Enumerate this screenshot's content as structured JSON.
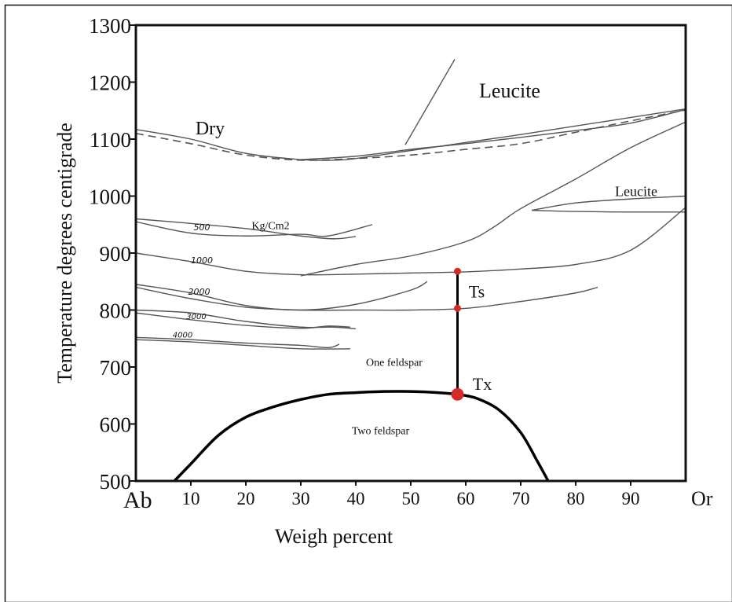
{
  "chart_data": {
    "type": "line",
    "xlabel": "Weigh percent",
    "ylabel": "Temperature degrees centigrade",
    "xlim": [
      0,
      100
    ],
    "ylim": [
      500,
      1300
    ],
    "x_ticks": [
      10,
      20,
      30,
      40,
      50,
      60,
      70,
      80,
      90
    ],
    "x_end_labels": {
      "left": "Ab",
      "right": "Or"
    },
    "y_ticks": [
      500,
      600,
      700,
      800,
      900,
      1000,
      1100,
      1200,
      1300
    ],
    "grid": false,
    "colors": {
      "axis": "#111111",
      "curve": "#555555",
      "solvus": "#000000",
      "marker": "#d62a2a"
    },
    "series": [
      {
        "name": "Dry",
        "style": "solid",
        "x": [
          0,
          10,
          20,
          30,
          36,
          40,
          50,
          60,
          70,
          80,
          90,
          100
        ],
        "y": [
          1117,
          1100,
          1075,
          1064,
          1063,
          1066,
          1080,
          1094,
          1108,
          1123,
          1138,
          1153
        ]
      },
      {
        "style": "dashed",
        "x": [
          0,
          10,
          20,
          30,
          40,
          50,
          60,
          70,
          80,
          90,
          100
        ],
        "y": [
          1110,
          1092,
          1072,
          1063,
          1066,
          1072,
          1082,
          1092,
          1112,
          1132,
          1151
        ]
      },
      {
        "style": "solid",
        "x": [
          49,
          52,
          55,
          58
        ],
        "y": [
          1090,
          1140,
          1190,
          1240
        ]
      },
      {
        "style": "solid",
        "x": [
          30,
          40,
          50,
          60,
          70,
          80,
          90,
          100
        ],
        "y": [
          1064,
          1070,
          1082,
          1092,
          1103,
          1115,
          1128,
          1152
        ]
      },
      {
        "style": "solid",
        "x": [
          30,
          40,
          50,
          60,
          65,
          70,
          80,
          90,
          100
        ],
        "y": [
          860,
          880,
          895,
          920,
          945,
          978,
          1030,
          1085,
          1130
        ]
      },
      {
        "style": "solid",
        "x": [
          72,
          80,
          90,
          100
        ],
        "y": [
          975,
          988,
          995,
          1000
        ]
      },
      {
        "style": "solid",
        "x": [
          72,
          80,
          90,
          100
        ],
        "y": [
          975,
          973,
          972,
          972
        ]
      },
      {
        "name": "500",
        "style": "solid",
        "x": [
          0,
          10,
          20,
          30,
          36,
          40
        ],
        "y": [
          960,
          952,
          943,
          930,
          925,
          929
        ]
      },
      {
        "style": "solid",
        "x": [
          0,
          10,
          20,
          30,
          35,
          43
        ],
        "y": [
          955,
          935,
          930,
          933,
          930,
          950
        ]
      },
      {
        "name": "1000",
        "style": "solid",
        "x": [
          0,
          10,
          20,
          30,
          40,
          50,
          60,
          70,
          80,
          90,
          100
        ],
        "y": [
          900,
          885,
          868,
          862,
          863,
          865,
          867,
          872,
          880,
          905,
          980
        ]
      },
      {
        "name": "2000",
        "style": "solid",
        "x": [
          0,
          10,
          20,
          30,
          40,
          50,
          53
        ],
        "y": [
          845,
          830,
          808,
          800,
          810,
          835,
          850
        ]
      },
      {
        "style": "solid",
        "x": [
          0,
          10,
          20,
          30,
          40,
          50,
          60,
          70,
          80,
          84
        ],
        "y": [
          840,
          820,
          805,
          800,
          800,
          800,
          803,
          815,
          830,
          840
        ]
      },
      {
        "name": "3000",
        "style": "solid",
        "x": [
          0,
          10,
          20,
          30,
          36,
          40
        ],
        "y": [
          800,
          795,
          780,
          770,
          770,
          767
        ]
      },
      {
        "style": "solid",
        "x": [
          0,
          10,
          20,
          30,
          35,
          39
        ],
        "y": [
          795,
          783,
          773,
          768,
          772,
          770
        ]
      },
      {
        "name": "4000",
        "style": "solid",
        "x": [
          0,
          10,
          20,
          30,
          35,
          37
        ],
        "y": [
          752,
          748,
          742,
          738,
          734,
          740
        ]
      },
      {
        "style": "solid",
        "x": [
          0,
          10,
          20,
          30,
          39
        ],
        "y": [
          748,
          744,
          738,
          732,
          732
        ]
      }
    ],
    "solvus": {
      "x": [
        7,
        10,
        15,
        20,
        25,
        30,
        35,
        40,
        45,
        50,
        55,
        58.5,
        62,
        66,
        70,
        73,
        75
      ],
      "y": [
        500,
        530,
        580,
        612,
        630,
        643,
        652,
        655,
        657,
        657,
        655,
        652,
        645,
        625,
        585,
        535,
        500
      ]
    },
    "vertical_line": {
      "x": 58.5,
      "y": [
        652,
        868
      ]
    },
    "points": [
      {
        "x": 58.5,
        "y": 868,
        "size": "small"
      },
      {
        "x": 58.5,
        "y": 803,
        "size": "small"
      },
      {
        "name": "Tx",
        "x": 58.5,
        "y": 652,
        "size": "large"
      }
    ],
    "annotations": [
      {
        "text": "Dry",
        "x": 13.5,
        "y": 1108,
        "class": "region",
        "size": 24
      },
      {
        "text": "Leucite",
        "x": 68,
        "y": 1173,
        "class": "region",
        "size": 26
      },
      {
        "text": "Leucite",
        "x": 91,
        "y": 1000,
        "class": "region-small",
        "size": 18
      },
      {
        "text": "500",
        "x": 12,
        "y": 940,
        "class": "hand",
        "size": 11
      },
      {
        "text": "Kg/Cm2",
        "x": 24.5,
        "y": 942,
        "class": "region-small",
        "size": 14
      },
      {
        "text": "1000",
        "x": 12,
        "y": 882,
        "class": "hand",
        "size": 11
      },
      {
        "text": "2000",
        "x": 11.5,
        "y": 827,
        "class": "hand",
        "size": 11
      },
      {
        "text": "3000",
        "x": 11,
        "y": 784,
        "class": "hand",
        "size": 10
      },
      {
        "text": "4000",
        "x": 8.5,
        "y": 752,
        "class": "hand",
        "size": 10
      },
      {
        "text": "Ts",
        "x": 62,
        "y": 822,
        "class": "region",
        "size": 22
      },
      {
        "text": "Tx",
        "x": 63,
        "y": 660,
        "class": "region",
        "size": 22
      },
      {
        "text": "One feldspar",
        "x": 47,
        "y": 702,
        "class": "region-small",
        "size": 14
      },
      {
        "text": "Two  feldspar",
        "x": 44.5,
        "y": 582,
        "class": "region-small",
        "size": 14
      }
    ]
  }
}
